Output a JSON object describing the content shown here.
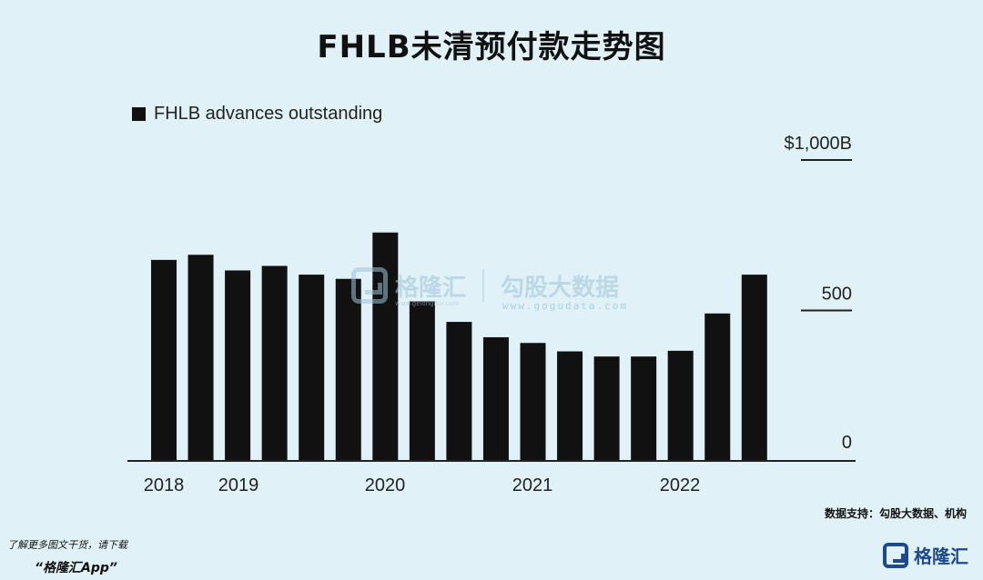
{
  "header": {
    "title": "FHLB未清预付款走势图"
  },
  "chart_data": {
    "type": "bar",
    "series": [
      {
        "name": "FHLB advances outstanding",
        "values": [
          668,
          685,
          633,
          648,
          619,
          605,
          759,
          530,
          462,
          411,
          392,
          364,
          347,
          347,
          366,
          490,
          619
        ]
      }
    ],
    "x_tick_labels": [
      "2018",
      "2019",
      "2020",
      "2021",
      "2022"
    ],
    "y_tick_labels": [
      "$1,000B",
      "500",
      "0"
    ],
    "ylim": [
      0,
      1000
    ],
    "legend_placement": "top-left",
    "grid": false,
    "bar_color": "#111111"
  },
  "watermark": {
    "brand": "格隆汇",
    "sub": "www.gelonghui.com",
    "product": "勾股大数据",
    "url": "www.gogudata.com"
  },
  "footer": {
    "source": "数据支持：勾股大数据、机构",
    "promo_line1": "了解更多图文干货，请下载",
    "promo_line2": "“格隆汇App”",
    "brand": "格隆汇"
  }
}
